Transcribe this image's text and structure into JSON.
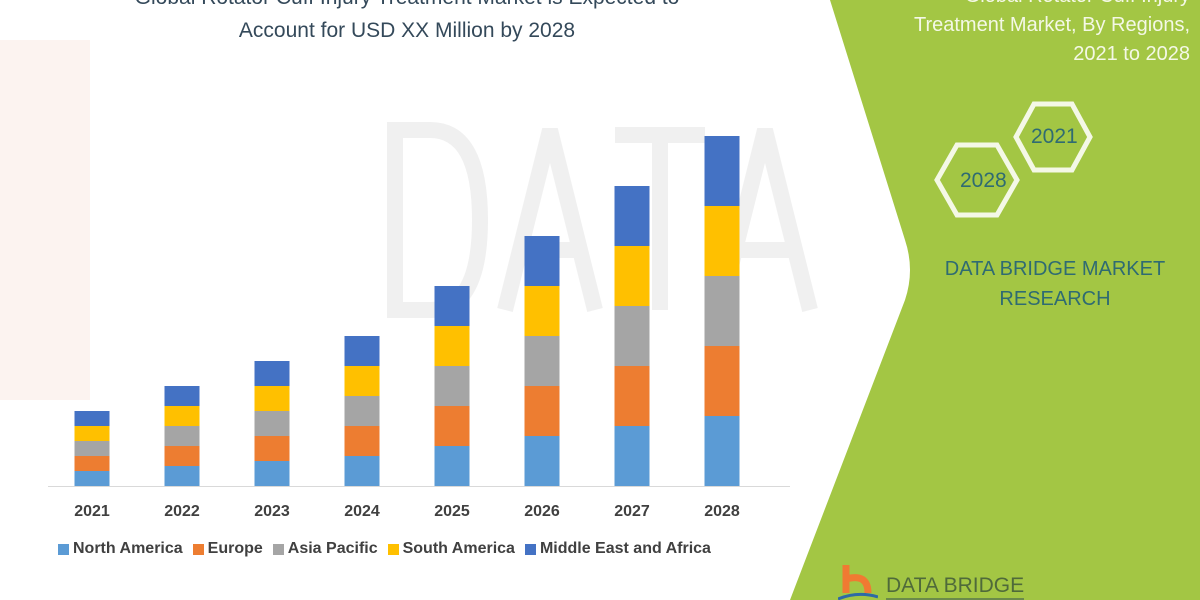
{
  "header": {
    "title_line1": "Global Rotator Cuff Injury Treatment Market is Expected to",
    "title_line2": "Account for USD XX Million by 2028"
  },
  "panel": {
    "title_lines": [
      "Global Rotator Cuff Injury",
      "Treatment Market, By Regions,",
      "2021 to 2028"
    ],
    "hex_labels": [
      "2021",
      "2028"
    ],
    "brand_lines": [
      "DATA BRIDGE MARKET",
      "RESEARCH"
    ],
    "logo_text": "DATA BRIDGE",
    "color": "#a3c644"
  },
  "watermark": "DATA BRIDGE",
  "chart_data": {
    "type": "bar",
    "stacked": true,
    "categories": [
      "2021",
      "2022",
      "2023",
      "2024",
      "2025",
      "2026",
      "2027",
      "2028"
    ],
    "series": [
      {
        "name": "North America",
        "color": "#5b9bd5",
        "values": [
          1.5,
          2,
          2.5,
          3,
          4,
          5,
          6,
          7
        ]
      },
      {
        "name": "Europe",
        "color": "#ed7d31",
        "values": [
          1.5,
          2,
          2.5,
          3,
          4,
          5,
          6,
          7
        ]
      },
      {
        "name": "Asia Pacific",
        "color": "#a5a5a5",
        "values": [
          1.5,
          2,
          2.5,
          3,
          4,
          5,
          6,
          7
        ]
      },
      {
        "name": "South America",
        "color": "#ffc000",
        "values": [
          1.5,
          2,
          2.5,
          3,
          4,
          5,
          6,
          7
        ]
      },
      {
        "name": "Middle East and Africa",
        "color": "#4472c4",
        "values": [
          1.5,
          2,
          2.5,
          3,
          4,
          5,
          6,
          7
        ]
      }
    ],
    "legend": "bottom",
    "grid": false,
    "y_axis_shown": false
  }
}
